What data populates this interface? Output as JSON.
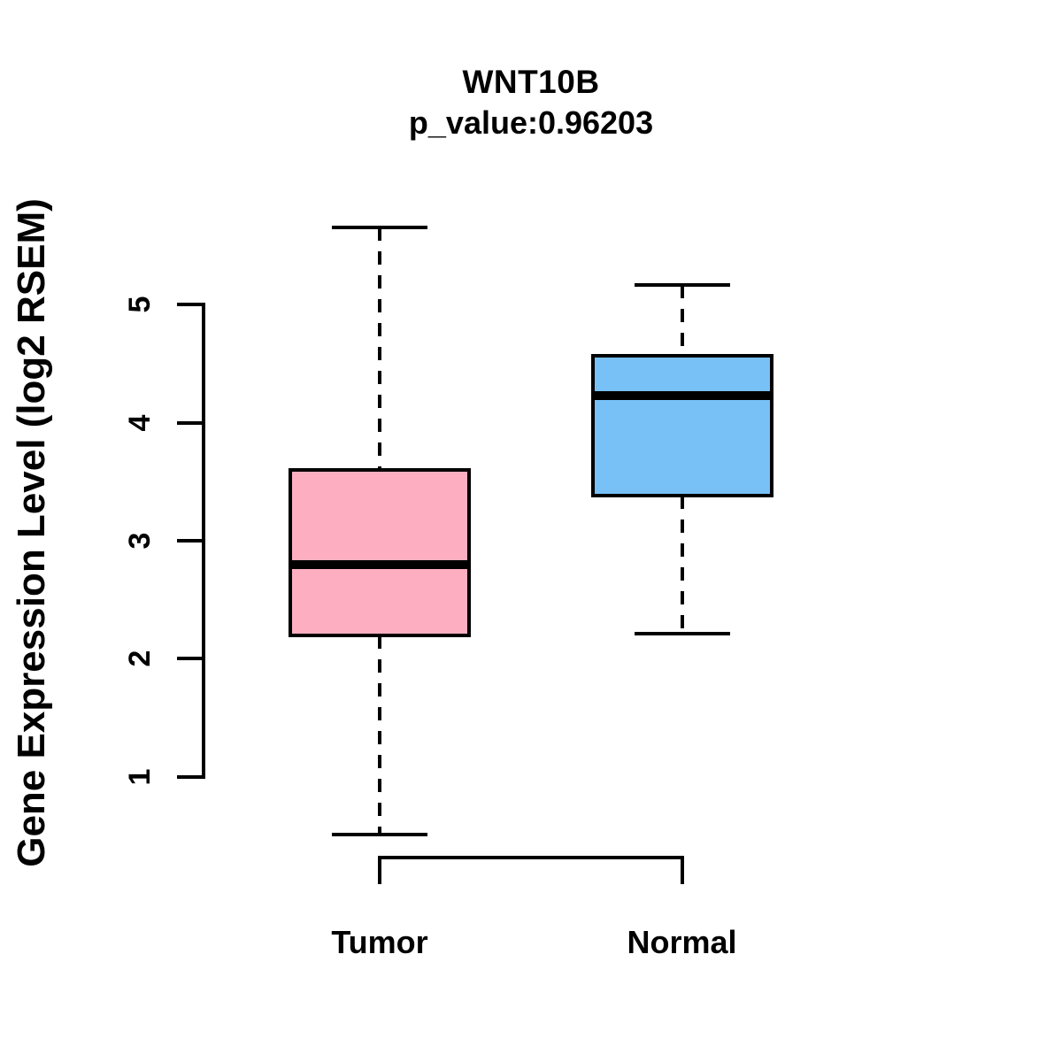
{
  "chart_data": {
    "type": "box",
    "title": "WNT10B",
    "subtitle": "p_value:0.96203",
    "ylabel": "Gene Expression Level (log2 RSEM)",
    "xlabel": "",
    "yticks": [
      1,
      2,
      3,
      4,
      5
    ],
    "ylim": [
      0.35,
      5.8
    ],
    "grid": false,
    "legend": "none",
    "background_color": "#FFFFFF",
    "stroke_color": "#000000",
    "categories": [
      "Tumor",
      "Normal"
    ],
    "series": [
      {
        "name": "Tumor",
        "fill_color": "#FDAFC1",
        "whisker_low": 0.51,
        "q1": 2.2,
        "median": 2.8,
        "q3": 3.6,
        "whisker_high": 5.65
      },
      {
        "name": "Normal",
        "fill_color": "#77C1F7",
        "whisker_low": 2.21,
        "q1": 3.38,
        "median": 4.23,
        "q3": 4.57,
        "whisker_high": 5.17
      }
    ]
  }
}
